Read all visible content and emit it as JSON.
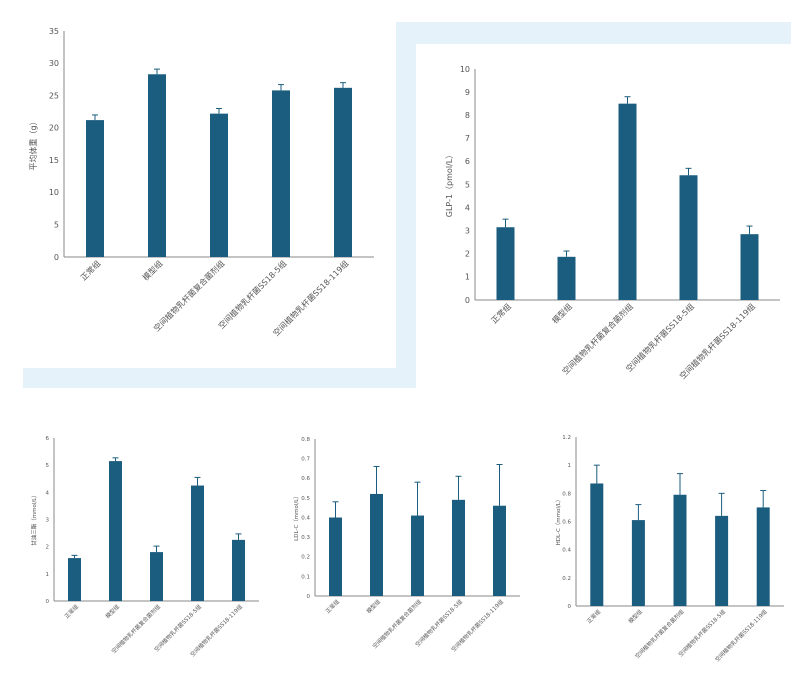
{
  "colors": {
    "bar": "#1b5d7e",
    "axis": "#888888",
    "text": "#555555",
    "decor": "#e5f2fa"
  },
  "chart_data": [
    {
      "type": "bar",
      "categories": [
        "正常组",
        "模型组",
        "空间植物乳杆菌复合菌剂组",
        "空间植物乳杆菌SS18-5组",
        "空间植物乳杆菌SS18-119组"
      ],
      "values": [
        21.2,
        28.3,
        22.2,
        25.8,
        26.2
      ],
      "errors": [
        0.8,
        0.8,
        0.8,
        0.9,
        0.8
      ],
      "ylabel": "平均体重（g）",
      "ylim": [
        0,
        35
      ],
      "yticks": [
        "0",
        "5",
        "10",
        "15",
        "20",
        "25",
        "30",
        "35"
      ],
      "grid": false
    },
    {
      "type": "bar",
      "categories": [
        "正常组",
        "模型组",
        "空间植物乳杆菌复合菌剂组",
        "空间植物乳杆菌SS18-5组",
        "空间植物乳杆菌SS18-119组"
      ],
      "values": [
        3.15,
        1.87,
        8.5,
        5.4,
        2.85
      ],
      "errors": [
        0.35,
        0.25,
        0.3,
        0.3,
        0.35
      ],
      "ylabel": "GLP-1（pmol/L）",
      "ylim": [
        0,
        10
      ],
      "yticks": [
        "0",
        "1",
        "2",
        "3",
        "4",
        "5",
        "6",
        "7",
        "8",
        "9",
        "10"
      ],
      "grid": false
    },
    {
      "type": "bar",
      "categories": [
        "正常组",
        "模型组",
        "空间植物乳杆菌复合菌剂组",
        "空间植物乳杆菌SS18-5组",
        "空间植物乳杆菌SS18-119组"
      ],
      "values": [
        1.58,
        5.15,
        1.8,
        4.25,
        2.25
      ],
      "errors": [
        0.1,
        0.12,
        0.22,
        0.3,
        0.22
      ],
      "ylabel": "甘油三酯（mmol/L）",
      "ylim": [
        0,
        6
      ],
      "yticks": [
        "0",
        "1",
        "2",
        "3",
        "4",
        "5",
        "6"
      ],
      "grid": false
    },
    {
      "type": "bar",
      "categories": [
        "正常组",
        "模型组",
        "空间植物乳杆菌复合菌剂组",
        "空间植物乳杆菌SS18-5组",
        "空间植物乳杆菌SS18-119组"
      ],
      "values": [
        0.4,
        0.52,
        0.41,
        0.49,
        0.46
      ],
      "errors": [
        0.08,
        0.14,
        0.17,
        0.12,
        0.21
      ],
      "ylabel": "LDL-C（mmol/L）",
      "ylim": [
        0,
        0.8
      ],
      "yticks": [
        "0",
        "0.1",
        "0.2",
        "0.3",
        "0.4",
        "0.5",
        "0.6",
        "0.7",
        "0.8"
      ],
      "grid": false
    },
    {
      "type": "bar",
      "categories": [
        "正常组",
        "模型组",
        "空间植物乳杆菌复合菌剂组",
        "空间植物乳杆菌SS18-5组",
        "空间植物乳杆菌SS18-119组"
      ],
      "values": [
        0.87,
        0.61,
        0.79,
        0.64,
        0.7
      ],
      "errors": [
        0.13,
        0.11,
        0.15,
        0.16,
        0.12
      ],
      "ylabel": "HDL-C（mmol/L）",
      "ylim": [
        0,
        1.2
      ],
      "yticks": [
        "0",
        "0.2",
        "0.4",
        "0.6",
        "0.8",
        "1",
        "1.2"
      ],
      "grid": false
    }
  ]
}
